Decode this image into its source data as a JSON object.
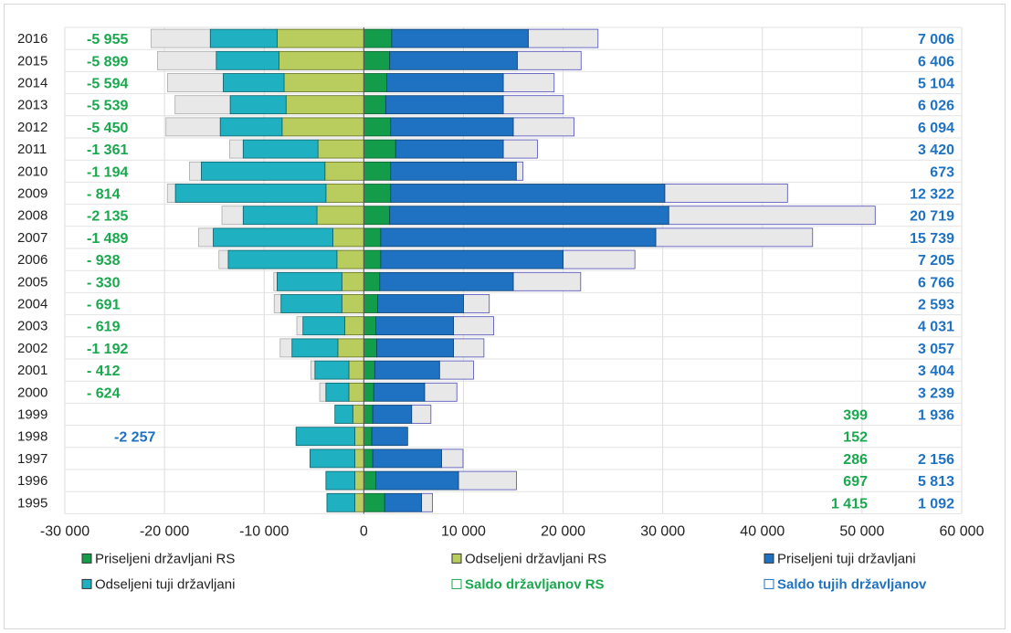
{
  "chart_data": {
    "type": "bar",
    "orientation": "horizontal",
    "stacked": true,
    "xlim": [
      -30000,
      60000
    ],
    "x_ticks": [
      -30000,
      -20000,
      -10000,
      0,
      10000,
      20000,
      30000,
      40000,
      50000,
      60000
    ],
    "x_tick_labels": [
      "-30 000",
      "-20 000",
      "-10 000",
      "0",
      "10 000",
      "20 000",
      "30 000",
      "40 000",
      "50 000",
      "60 000"
    ],
    "grid": true,
    "legend_position": "bottom",
    "years": [
      "2016",
      "2015",
      "2014",
      "2013",
      "2012",
      "2011",
      "2010",
      "2009",
      "2008",
      "2007",
      "2006",
      "2005",
      "2004",
      "2003",
      "2002",
      "2001",
      "2000",
      "1999",
      "1998",
      "1997",
      "1996",
      "1995"
    ],
    "series": [
      {
        "name": "Priseljeni državljani RS",
        "color": "#139c4a",
        "values": [
          2800,
          2600,
          2300,
          2200,
          2700,
          3200,
          2700,
          2700,
          2600,
          1700,
          1700,
          1600,
          1400,
          1200,
          1300,
          1100,
          1000,
          900,
          800,
          900,
          1200,
          2100
        ]
      },
      {
        "name": "Odseljeni državljani RS",
        "color": "#b9cc5e",
        "values": [
          -8700,
          -8500,
          -8000,
          -7800,
          -8200,
          -4600,
          -3900,
          -3800,
          -4700,
          -3100,
          -2700,
          -2200,
          -2200,
          -1900,
          -2600,
          -1500,
          -1500,
          -1100,
          -900,
          -900,
          -900,
          -900
        ]
      },
      {
        "name": "Priseljeni tuji državljani",
        "color": "#1f72c2",
        "values": [
          13700,
          12800,
          11700,
          11800,
          12300,
          10800,
          12600,
          27500,
          28000,
          27600,
          18300,
          13400,
          8600,
          7800,
          7700,
          6500,
          5100,
          3900,
          3600,
          6900,
          8300,
          3700
        ]
      },
      {
        "name": "Odseljeni tuji državljani",
        "color": "#1fb1c1",
        "values": [
          -6700,
          -6300,
          -6100,
          -5600,
          -6200,
          -7500,
          -12400,
          -15100,
          -7400,
          -12000,
          -10900,
          -6500,
          -6100,
          -4200,
          -4600,
          -3400,
          -2300,
          -1800,
          -5900,
          -4500,
          -2900,
          -2800
        ]
      },
      {
        "name": "Saldo državljanov RS",
        "color": "#1aa84f",
        "values": [
          -5955,
          -5899,
          -5594,
          -5539,
          -5450,
          -1361,
          -1194,
          -814,
          -2135,
          -1489,
          -938,
          -330,
          -691,
          -619,
          -1192,
          -412,
          -624,
          399,
          152,
          286,
          697,
          1415
        ]
      },
      {
        "name": "Saldo tujih državljanov",
        "color": "#1f72c2",
        "values": [
          7006,
          6406,
          5104,
          6026,
          6094,
          3420,
          673,
          12322,
          20719,
          15739,
          7205,
          6766,
          2593,
          4031,
          3057,
          3404,
          3239,
          1936,
          -2257,
          2156,
          5813,
          1092
        ]
      }
    ],
    "saldo_rs_labels": [
      "-5 955",
      "-5 899",
      "-5 594",
      "-5 539",
      "-5 450",
      "-1 361",
      "-1 194",
      "- 814",
      "-2 135",
      "-1 489",
      "- 938",
      "- 330",
      "- 691",
      "- 619",
      "-1 192",
      "- 412",
      "- 624",
      "399",
      "152",
      "286",
      "697",
      "1 415"
    ],
    "saldo_tuji_labels": [
      "7 006",
      "6 406",
      "5 104",
      "6 026",
      "6 094",
      "3 420",
      "673",
      "12 322",
      "20 719",
      "15 739",
      "7 205",
      "6 766",
      "2 593",
      "4 031",
      "3 057",
      "3 404",
      "3 239",
      "1 936",
      "-2 257",
      "2 156",
      "5 813",
      "1 092"
    ]
  },
  "legend": [
    {
      "key": "priseljeni_rs",
      "label": "Priseljeni državljani RS",
      "color": "#139c4a",
      "style": "filled"
    },
    {
      "key": "odseljeni_rs",
      "label": "Odseljeni državljani RS",
      "color": "#b9cc5e",
      "style": "filled"
    },
    {
      "key": "priseljeni_tuji",
      "label": "Priseljeni tuji državljani",
      "color": "#1f72c2",
      "style": "filled"
    },
    {
      "key": "odseljeni_tuji",
      "label": "Odseljeni tuji državljani",
      "color": "#1fb1c1",
      "style": "filled"
    },
    {
      "key": "saldo_rs",
      "label": "Saldo državljanov RS",
      "color": "#1aa84f",
      "style": "outline"
    },
    {
      "key": "saldo_tuji",
      "label": "Saldo tujih državljanov",
      "color": "#1f72c2",
      "style": "outline"
    }
  ]
}
